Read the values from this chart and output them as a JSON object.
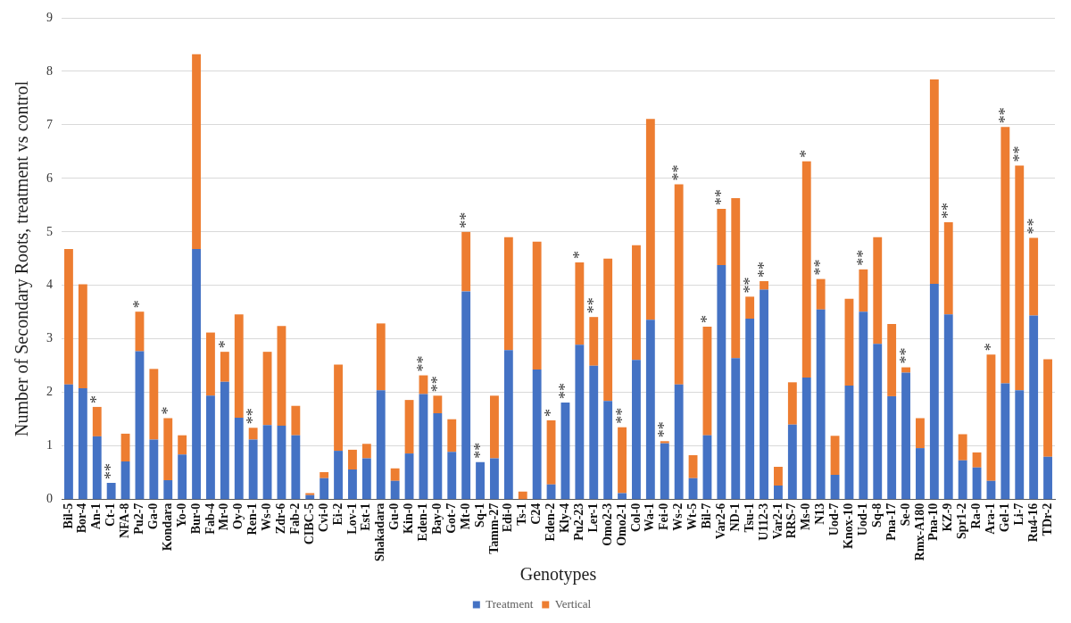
{
  "chart_data": {
    "type": "bar",
    "stacked": true,
    "xlabel": "Genotypes",
    "ylabel": "Number of Secondary Roots, treatment vs control",
    "categories": [
      "Bil-5",
      "Bor-4",
      "An-1",
      "Ct-1",
      "NFA-8",
      "Pu2-7",
      "Ga-0",
      "Kondara",
      "Yo-0",
      "Bur-0",
      "Fab-4",
      "Mr-0",
      "Oy-0",
      "Ren-1",
      "Ws-0",
      "Zdr-6",
      "Fab-2",
      "CIBC-5",
      "Cvi-0",
      "Ei-2",
      "Lov-1",
      "Est-1",
      "Shakadara",
      "Gu-0",
      "Kin-0",
      "Eden-1",
      "Bay-0",
      "Got-7",
      "Mt-0",
      "Sq-1",
      "Tamm-27",
      "Edi-0",
      "Ts-1",
      "C24",
      "Eden-2",
      "Kly-4",
      "Pu2-23",
      "Ler-1",
      "Omo2-3",
      "Omo2-1",
      "Col-0",
      "Wa-1",
      "Fei-0",
      "Ws-2",
      "Wt-5",
      "Bil-7",
      "Var2-6",
      "ND-1",
      "Tsu-1",
      "U112-3",
      "Var2-1",
      "RRS-7",
      "Ms-0",
      "N13",
      "Uod-7",
      "Knox-10",
      "Uod-1",
      "Sq-8",
      "Pna-17",
      "Se-0",
      "Rmx-A180",
      "Pna-10",
      "KZ-9",
      "Spr1-2",
      "Ra-0",
      "Ara-1",
      "Gel-1",
      "Li-7",
      "Ru4-16",
      "TDr-2"
    ],
    "series": [
      {
        "name": "Treatment",
        "color": "#4472c4",
        "values": [
          2.15,
          2.08,
          1.18,
          0.31,
          0.71,
          2.77,
          1.12,
          0.36,
          0.84,
          4.68,
          1.94,
          2.2,
          1.53,
          1.12,
          1.39,
          1.38,
          1.2,
          0.08,
          0.4,
          0.91,
          0.56,
          0.77,
          2.04,
          0.35,
          0.86,
          1.97,
          1.61,
          0.89,
          3.89,
          0.7,
          0.77,
          2.79,
          0,
          2.43,
          0.28,
          1.81,
          2.89,
          2.5,
          1.84,
          0.12,
          2.61,
          3.36,
          1.05,
          2.15,
          0.4,
          1.2,
          4.38,
          2.64,
          3.38,
          3.92,
          0.26,
          1.4,
          2.28,
          3.55,
          0.46,
          2.13,
          3.51,
          2.91,
          1.93,
          2.37,
          0.96,
          4.03,
          3.46,
          0.73,
          0.6,
          0.35,
          2.17,
          2.04,
          3.44,
          0.8
        ]
      },
      {
        "name": "Vertical",
        "color": "#ed7d31",
        "values": [
          2.53,
          1.94,
          0.55,
          0,
          0.52,
          0.74,
          1.32,
          1.16,
          0.36,
          3.64,
          1.18,
          0.56,
          1.93,
          0.22,
          1.37,
          1.86,
          0.55,
          0.04,
          0.11,
          1.61,
          0.37,
          0.27,
          1.25,
          0.23,
          1,
          0.35,
          0.33,
          0.61,
          1.11,
          0,
          1.17,
          2.11,
          0.15,
          2.39,
          1.2,
          0,
          1.54,
          0.91,
          2.66,
          1.23,
          2.14,
          3.75,
          0.04,
          3.74,
          0.43,
          2.03,
          1.05,
          2.99,
          0.41,
          0.16,
          0.35,
          0.79,
          4.04,
          0.57,
          0.73,
          1.62,
          0.79,
          1.99,
          1.35,
          0.1,
          0.56,
          3.82,
          1.72,
          0.49,
          0.28,
          2.36,
          4.79,
          4.2,
          1.45,
          1.82
        ]
      }
    ],
    "ylim": [
      0,
      9
    ],
    "yticks": [
      0,
      1,
      2,
      3,
      4,
      5,
      6,
      7,
      8,
      9
    ],
    "grid": "y",
    "legend": "bottom",
    "annotations": [
      {
        "text": "*",
        "x": "An-1",
        "y": 1.73
      },
      {
        "text": "**",
        "x": "Ct-1",
        "y": 0.31
      },
      {
        "text": "*",
        "x": "Pu2-7",
        "y": 3.51
      },
      {
        "text": "*",
        "x": "Kondara",
        "y": 1.52
      },
      {
        "text": "*",
        "x": "Mr-0",
        "y": 2.76
      },
      {
        "text": "**",
        "x": "Ren-1",
        "y": 1.34
      },
      {
        "text": "**",
        "x": "Eden-1",
        "y": 2.32
      },
      {
        "text": "**",
        "x": "Bay-0",
        "y": 1.94
      },
      {
        "text": "**",
        "x": "Mt-0",
        "y": 5.0
      },
      {
        "text": "**",
        "x": "Sq-1",
        "y": 0.7
      },
      {
        "text": "*",
        "x": "Eden-2",
        "y": 1.48
      },
      {
        "text": "**",
        "x": "Kly-4",
        "y": 1.81
      },
      {
        "text": "*",
        "x": "Pu2-23",
        "y": 4.43
      },
      {
        "text": "**",
        "x": "Ler-1",
        "y": 3.41
      },
      {
        "text": "**",
        "x": "Omo2-1",
        "y": 1.35
      },
      {
        "text": "**",
        "x": "Fei-0",
        "y": 1.09
      },
      {
        "text": "**",
        "x": "Ws-2",
        "y": 5.89
      },
      {
        "text": "*",
        "x": "Bil-7",
        "y": 3.23
      },
      {
        "text": "**",
        "x": "Var2-6",
        "y": 5.43
      },
      {
        "text": "**",
        "x": "Tsu-1",
        "y": 3.79
      },
      {
        "text": "**",
        "x": "U112-3",
        "y": 4.08
      },
      {
        "text": "*",
        "x": "Ms-0",
        "y": 6.32
      },
      {
        "text": "**",
        "x": "N13",
        "y": 4.12
      },
      {
        "text": "**",
        "x": "Uod-1",
        "y": 4.3
      },
      {
        "text": "**",
        "x": "Se-0",
        "y": 2.47
      },
      {
        "text": "**",
        "x": "KZ-9",
        "y": 5.18
      },
      {
        "text": "*",
        "x": "Ara-1",
        "y": 2.71
      },
      {
        "text": "**",
        "x": "Gel-1",
        "y": 6.96
      },
      {
        "text": "**",
        "x": "Li-7",
        "y": 6.24
      },
      {
        "text": "**",
        "x": "Ru4-16",
        "y": 4.89
      }
    ]
  }
}
